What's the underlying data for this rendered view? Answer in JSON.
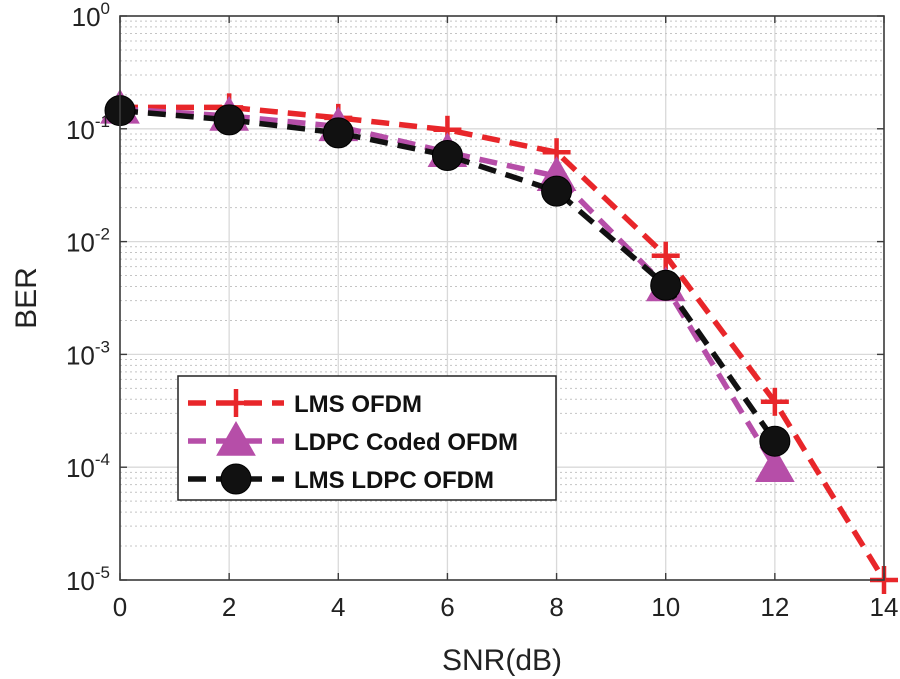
{
  "chart_data": {
    "type": "line",
    "xlabel": "SNR(dB)",
    "ylabel": "BER",
    "xlim": [
      0,
      14
    ],
    "ylim": [
      1e-05,
      1
    ],
    "yscale": "log",
    "x_ticks": [
      {
        "value": 0,
        "label": "0"
      },
      {
        "value": 2,
        "label": "2"
      },
      {
        "value": 4,
        "label": "4"
      },
      {
        "value": 6,
        "label": "6"
      },
      {
        "value": 8,
        "label": "8"
      },
      {
        "value": 10,
        "label": "10"
      },
      {
        "value": 12,
        "label": "12"
      },
      {
        "value": 14,
        "label": "14"
      }
    ],
    "y_ticks": [
      {
        "value": 1,
        "base": "10",
        "exp": "0"
      },
      {
        "value": 0.1,
        "base": "10",
        "exp": "-1"
      },
      {
        "value": 0.01,
        "base": "10",
        "exp": "-2"
      },
      {
        "value": 0.001,
        "base": "10",
        "exp": "-3"
      },
      {
        "value": 0.0001,
        "base": "10",
        "exp": "-4"
      },
      {
        "value": 1e-05,
        "base": "10",
        "exp": "-5"
      }
    ],
    "grid": true,
    "minor_grid": true,
    "legend_position": "lower-left",
    "series": [
      {
        "name": "LMS OFDM",
        "color": "#e8262a",
        "marker": "plus",
        "x": [
          0,
          2,
          4,
          6,
          8,
          10,
          12,
          14
        ],
        "y": [
          0.155,
          0.155,
          0.125,
          0.098,
          0.062,
          0.0075,
          0.00038,
          1e-05
        ]
      },
      {
        "name": "LDPC Coded OFDM",
        "color": "#b64ea8",
        "marker": "triangle",
        "x": [
          0,
          2,
          4,
          6,
          8,
          10,
          12
        ],
        "y": [
          0.15,
          0.13,
          0.105,
          0.062,
          0.038,
          0.004,
          0.0001
        ]
      },
      {
        "name": "LMS LDPC OFDM",
        "color": "#111111",
        "marker": "circle",
        "x": [
          0,
          2,
          4,
          6,
          8,
          10,
          12
        ],
        "y": [
          0.145,
          0.12,
          0.092,
          0.058,
          0.028,
          0.0041,
          0.00017
        ]
      }
    ]
  }
}
